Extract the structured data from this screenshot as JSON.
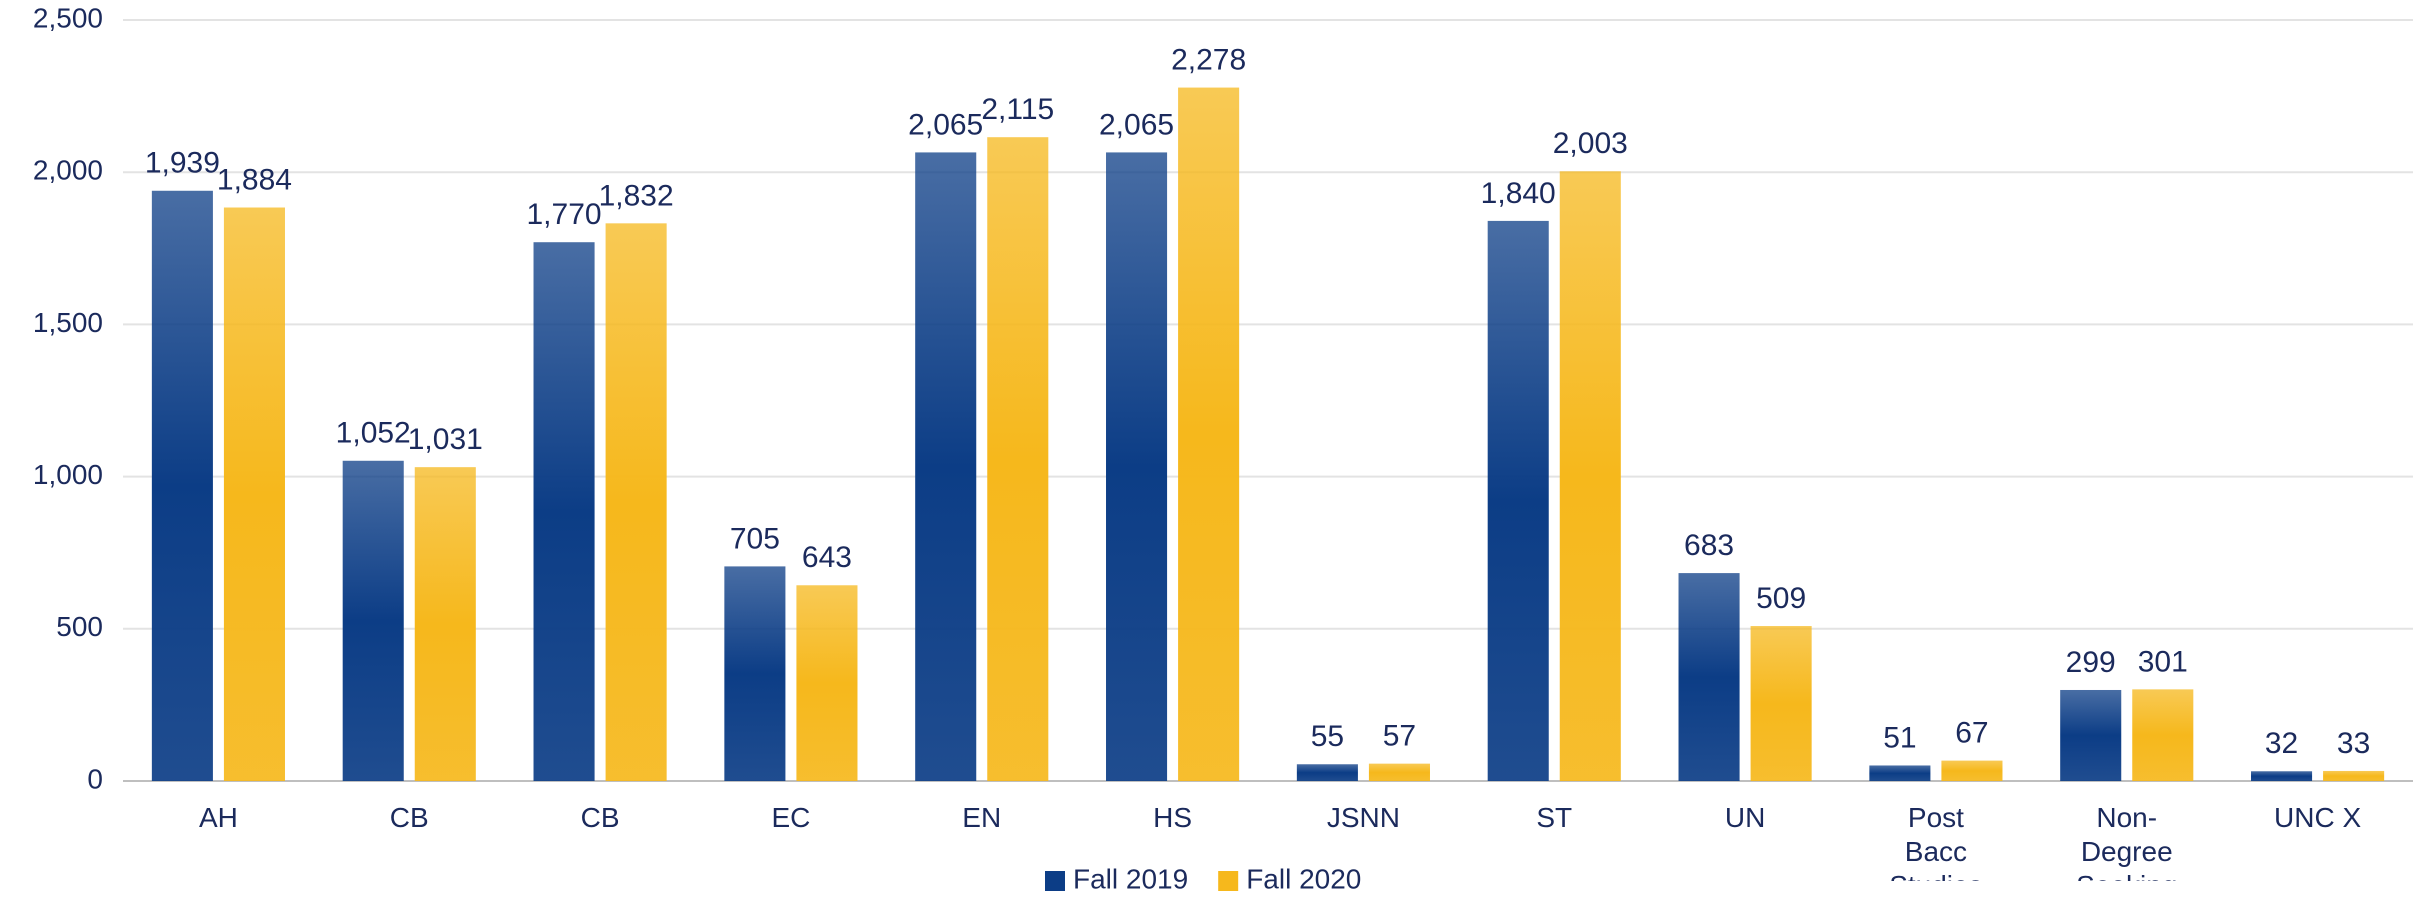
{
  "chart_data": {
    "type": "bar",
    "categories": [
      "AH",
      "CB",
      "CB",
      "EC",
      "EN",
      "HS",
      "JSNN",
      "ST",
      "UN",
      "Post Bacc Studies",
      "Non-Degree Seeking",
      "UNC X"
    ],
    "series": [
      {
        "name": "Fall 2019",
        "color": "#0c3d86",
        "values": [
          1939,
          1052,
          1770,
          705,
          2065,
          2065,
          55,
          1840,
          683,
          51,
          299,
          32
        ],
        "value_labels": [
          "1,939",
          "1,052",
          "1,770",
          "705",
          "2,065",
          "2,065",
          "55",
          "1,840",
          "683",
          "51",
          "299",
          "32"
        ]
      },
      {
        "name": "Fall 2020",
        "color": "#f6b81c",
        "values": [
          1884,
          1031,
          1832,
          643,
          2115,
          2278,
          57,
          2003,
          509,
          67,
          301,
          33
        ],
        "value_labels": [
          "1,884",
          "1,031",
          "1,832",
          "643",
          "2,115",
          "2,278",
          "57",
          "2,003",
          "509",
          "67",
          "301",
          "33"
        ]
      }
    ],
    "ylim": [
      0,
      2500
    ],
    "yticks": [
      0,
      500,
      {
        "value": 1000,
        "label": "1,000"
      },
      {
        "value": 1500,
        "label": "1,500"
      },
      {
        "value": 2000,
        "label": "2,000"
      },
      {
        "value": 2500,
        "label": "2,500"
      }
    ],
    "grid": true,
    "legend": "bottom"
  }
}
